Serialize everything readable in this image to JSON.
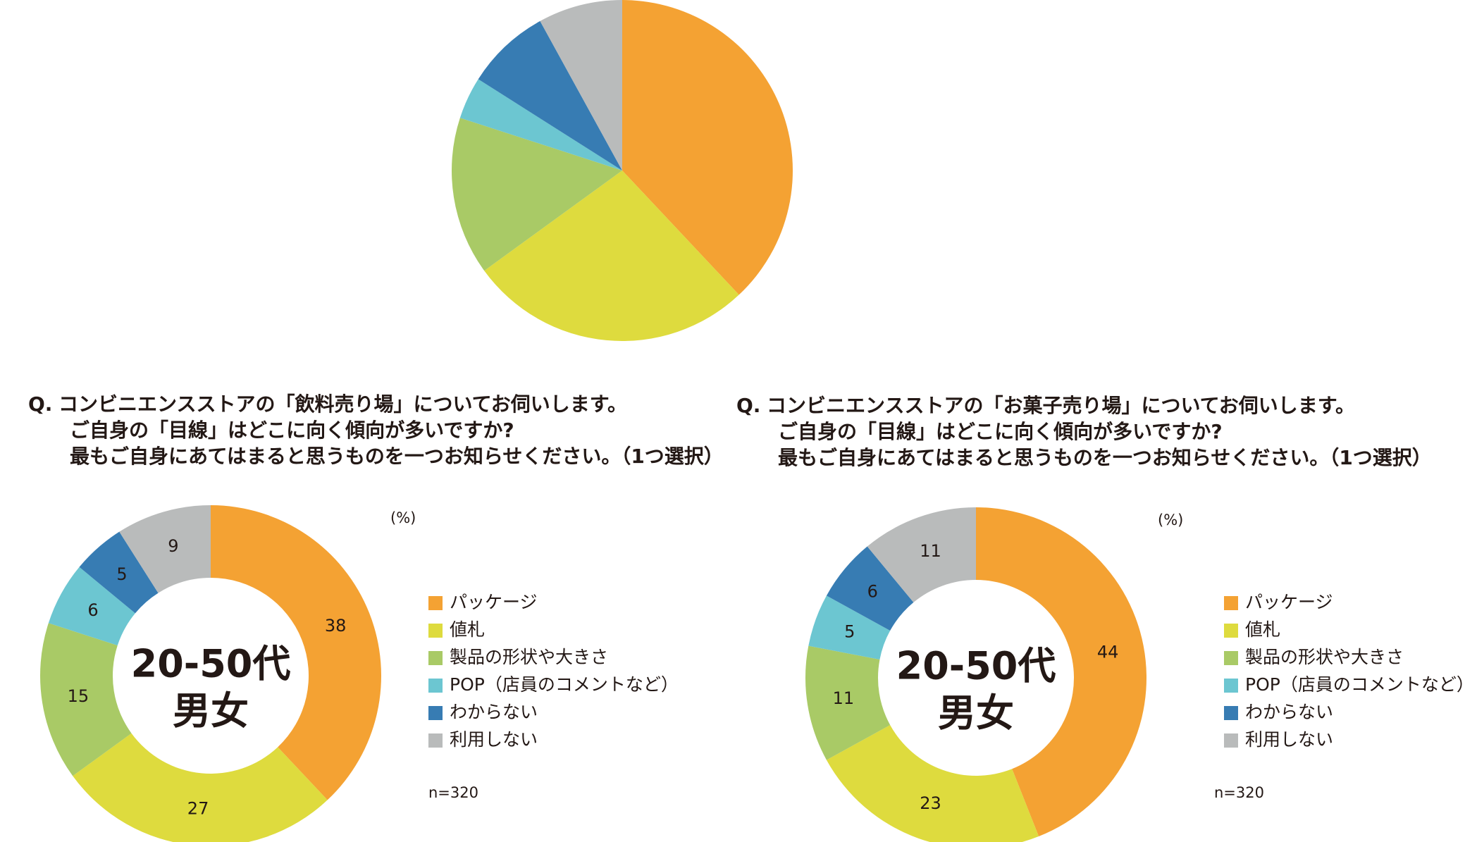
{
  "chart_data": [
    {
      "type": "pie",
      "values": [
        38,
        27,
        15,
        4,
        8,
        8
      ],
      "colors": [
        "#f4a233",
        "#dedb3e",
        "#a9ca66",
        "#6cc6d1",
        "#377cb3",
        "#b9bbbb"
      ]
    },
    {
      "type": "donut",
      "prefix": "Q.",
      "title": [
        "コンビニエンスストアの「飲料売り場」についてお伺いします。",
        "ご自身の「目線」はどこに向く傾向が多いですか?",
        "最もご自身にあてはまると思うものを一つお知らせください。（1つ選択）"
      ],
      "center_label": [
        "20-50代",
        "男女"
      ],
      "unit": "(%)",
      "note": "n=320",
      "categories": [
        "パッケージ",
        "値札",
        "製品の形状や大きさ",
        "POP（店員のコメントなど）",
        "わからない",
        "利用しない"
      ],
      "values": [
        38,
        27,
        15,
        6,
        5,
        9
      ],
      "colors": [
        "#f4a233",
        "#dedb3e",
        "#a9ca66",
        "#6cc6d1",
        "#377cb3",
        "#b9bbbb"
      ]
    },
    {
      "type": "donut",
      "prefix": "Q.",
      "title": [
        "コンビニエンスストアの「お菓子売り場」についてお伺いします。",
        "ご自身の「目線」はどこに向く傾向が多いですか?",
        "最もご自身にあてはまると思うものを一つお知らせください。（1つ選択）"
      ],
      "center_label": [
        "20-50代",
        "男女"
      ],
      "unit": "(%)",
      "note": "n=320",
      "categories": [
        "パッケージ",
        "値札",
        "製品の形状や大きさ",
        "POP（店員のコメントなど）",
        "わからない",
        "利用しない"
      ],
      "values": [
        44,
        23,
        11,
        5,
        6,
        11
      ],
      "colors": [
        "#f4a233",
        "#dedb3e",
        "#a9ca66",
        "#6cc6d1",
        "#377cb3",
        "#b9bbbb"
      ]
    }
  ]
}
